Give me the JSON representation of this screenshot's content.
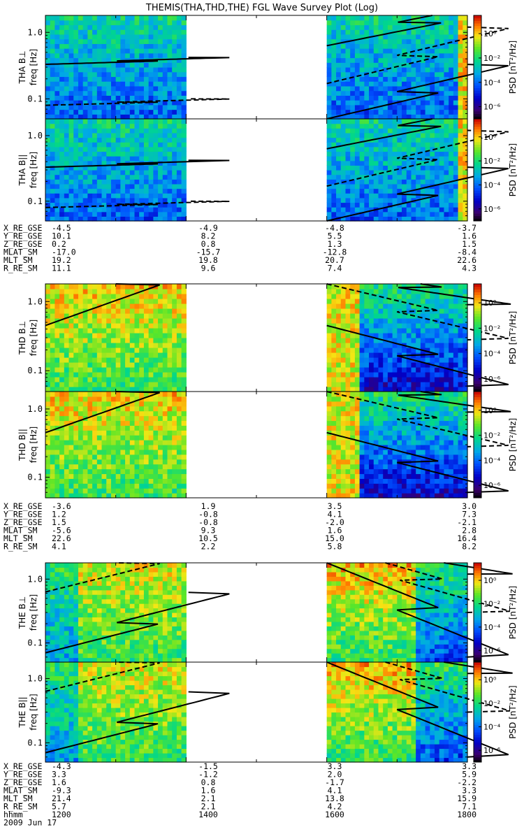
{
  "title": "THEMIS(THA,THD,THE) FGL Wave Survey Plot (Log)",
  "colorbar": {
    "label": "PSD [nT²/Hz]",
    "tick_labels": [
      "10⁰",
      "10⁻²",
      "10⁻⁴",
      "10⁻⁶"
    ]
  },
  "time_axis": {
    "row_label": "hhmm",
    "tick_labels": [
      "1200",
      "1400",
      "1600",
      "1800"
    ],
    "date": "2009 Jun 17"
  },
  "ephemeris_labels": [
    "X_RE_GSE",
    "Y_RE_GSE",
    "Z_RE_GSE",
    "MLAT_SM",
    "MLT_SM",
    "R_RE_SM"
  ],
  "chart_data": {
    "type": "heatmap",
    "xlabel": "hhmm",
    "x_range": [
      "1200",
      "1800"
    ],
    "y_scale": "log",
    "ylim": [
      0.05,
      1.8
    ],
    "y_ticks": [
      0.1,
      1.0
    ],
    "y_tick_labels": [
      "0.1",
      "1.0"
    ],
    "colorbar_range_log10": [
      -7,
      1.5
    ],
    "panels": [
      {
        "label": "THA B⊥",
        "ylabel": "freq [Hz]",
        "data_gap": [
          "1402",
          "1600"
        ],
        "lines": [
          {
            "style": "solid",
            "x": [
              1200,
              1402
            ],
            "y": [
              0.33,
              0.42
            ]
          },
          {
            "style": "dashed",
            "x": [
              1200,
              1402
            ],
            "y": [
              0.08,
              0.1
            ]
          },
          {
            "style": "solid",
            "x": [
              1600,
              1730
            ],
            "y": [
              0.63,
              1.8
            ]
          },
          {
            "style": "dashed",
            "x": [
              1600,
              1800
            ],
            "y": [
              0.17,
              1.2
            ]
          },
          {
            "style": "solid",
            "x": [
              1600,
              1800
            ],
            "y": [
              0.05,
              0.33
            ]
          }
        ]
      },
      {
        "label": "THA B||",
        "ylabel": "freq [Hz]",
        "data_gap": [
          "1402",
          "1600"
        ],
        "lines": [
          {
            "style": "solid",
            "x": [
              1200,
              1402
            ],
            "y": [
              0.33,
              0.42
            ]
          },
          {
            "style": "dashed",
            "x": [
              1200,
              1402
            ],
            "y": [
              0.08,
              0.1
            ]
          },
          {
            "style": "solid",
            "x": [
              1600,
              1730
            ],
            "y": [
              0.63,
              1.8
            ]
          },
          {
            "style": "dashed",
            "x": [
              1600,
              1800
            ],
            "y": [
              0.17,
              1.2
            ]
          },
          {
            "style": "solid",
            "x": [
              1600,
              1800
            ],
            "y": [
              0.05,
              0.33
            ]
          }
        ]
      },
      {
        "label": "THD B⊥",
        "ylabel": "freq [Hz]",
        "data_gap": [
          "1402",
          "1600"
        ],
        "lines": [
          {
            "style": "solid",
            "x": [
              1200,
              1300
            ],
            "y": [
              0.45,
              1.8
            ]
          },
          {
            "style": "dashed",
            "x": [
              1600,
              1800
            ],
            "y": [
              1.8,
              0.28
            ]
          },
          {
            "style": "solid",
            "x": [
              1600,
              1800
            ],
            "y": [
              0.45,
              0.06
            ]
          },
          {
            "style": "solid",
            "x": [
              1680,
              1800
            ],
            "y": [
              1.8,
              0.9
            ]
          }
        ]
      },
      {
        "label": "THD B||",
        "ylabel": "freq [Hz]",
        "data_gap": [
          "1402",
          "1600"
        ],
        "lines": [
          {
            "style": "solid",
            "x": [
              1200,
              1300
            ],
            "y": [
              0.45,
              1.8
            ]
          },
          {
            "style": "dashed",
            "x": [
              1600,
              1800
            ],
            "y": [
              1.8,
              0.28
            ]
          },
          {
            "style": "solid",
            "x": [
              1600,
              1800
            ],
            "y": [
              0.45,
              0.06
            ]
          },
          {
            "style": "solid",
            "x": [
              1680,
              1800
            ],
            "y": [
              1.8,
              0.9
            ]
          }
        ]
      },
      {
        "label": "THE B⊥",
        "ylabel": "freq [Hz]",
        "data_gap": [
          "1402",
          "1600"
        ],
        "lines": [
          {
            "style": "solid",
            "x": [
              1200,
              1402
            ],
            "y": [
              0.07,
              0.62
            ]
          },
          {
            "style": "dashed",
            "x": [
              1200,
              1300
            ],
            "y": [
              0.63,
              1.8
            ]
          },
          {
            "style": "solid",
            "x": [
              1600,
              1800
            ],
            "y": [
              1.8,
              0.06
            ]
          },
          {
            "style": "dashed",
            "x": [
              1650,
              1800
            ],
            "y": [
              1.8,
              0.3
            ]
          },
          {
            "style": "solid",
            "x": [
              1740,
              1800
            ],
            "y": [
              1.8,
              1.2
            ]
          }
        ]
      },
      {
        "label": "THE B||",
        "ylabel": "freq [Hz]",
        "data_gap": [
          "1402",
          "1600"
        ],
        "lines": [
          {
            "style": "solid",
            "x": [
              1200,
              1402
            ],
            "y": [
              0.07,
              0.62
            ]
          },
          {
            "style": "dashed",
            "x": [
              1200,
              1300
            ],
            "y": [
              0.63,
              1.8
            ]
          },
          {
            "style": "solid",
            "x": [
              1600,
              1800
            ],
            "y": [
              1.8,
              0.06
            ]
          },
          {
            "style": "dashed",
            "x": [
              1650,
              1800
            ],
            "y": [
              1.8,
              0.3
            ]
          },
          {
            "style": "solid",
            "x": [
              1740,
              1800
            ],
            "y": [
              1.8,
              1.2
            ]
          }
        ]
      }
    ],
    "ephemeris_blocks": [
      {
        "probe": "THA",
        "rows": [
          {
            "name": "X_RE_GSE",
            "values": [
              "-4.5",
              "-4.9",
              "-4.8",
              "-3.7"
            ]
          },
          {
            "name": "Y_RE_GSE",
            "values": [
              "10.1",
              "8.2",
              "5.5",
              "1.6"
            ]
          },
          {
            "name": "Z_RE_GSE",
            "values": [
              "0.2",
              "0.8",
              "1.3",
              "1.5"
            ]
          },
          {
            "name": "MLAT_SM",
            "values": [
              "-17.0",
              "-15.7",
              "-12.8",
              "-8.4"
            ]
          },
          {
            "name": "MLT_SM",
            "values": [
              "19.2",
              "19.8",
              "20.7",
              "22.6"
            ]
          },
          {
            "name": "R_RE_SM",
            "values": [
              "11.1",
              "9.6",
              "7.4",
              "4.3"
            ]
          }
        ]
      },
      {
        "probe": "THD",
        "rows": [
          {
            "name": "X_RE_GSE",
            "values": [
              "-3.6",
              "1.9",
              "3.5",
              "3.0"
            ]
          },
          {
            "name": "Y_RE_GSE",
            "values": [
              "1.2",
              "-0.8",
              "4.1",
              "7.3"
            ]
          },
          {
            "name": "Z_RE_GSE",
            "values": [
              "1.5",
              "-0.8",
              "-2.0",
              "-2.1"
            ]
          },
          {
            "name": "MLAT_SM",
            "values": [
              "-5.6",
              "9.3",
              "1.6",
              "2.8"
            ]
          },
          {
            "name": "MLT_SM",
            "values": [
              "22.6",
              "10.5",
              "15.0",
              "16.4"
            ]
          },
          {
            "name": "R_RE_SM",
            "values": [
              "4.1",
              "2.2",
              "5.8",
              "8.2"
            ]
          }
        ]
      },
      {
        "probe": "THE",
        "rows": [
          {
            "name": "X_RE_GSE",
            "values": [
              "-4.3",
              "-1.5",
              "3.3",
              "3.3"
            ]
          },
          {
            "name": "Y_RE_GSE",
            "values": [
              "3.3",
              "-1.2",
              "2.0",
              "5.9"
            ]
          },
          {
            "name": "Z_RE_GSE",
            "values": [
              "1.6",
              "0.8",
              "-1.7",
              "-2.2"
            ]
          },
          {
            "name": "MLAT_SM",
            "values": [
              "-9.3",
              "1.6",
              "4.1",
              "3.3"
            ]
          },
          {
            "name": "MLT_SM",
            "values": [
              "21.4",
              "2.1",
              "13.8",
              "15.9"
            ]
          },
          {
            "name": "R_RE_SM",
            "values": [
              "5.7",
              "2.1",
              "4.2",
              "7.1"
            ]
          }
        ]
      }
    ]
  }
}
